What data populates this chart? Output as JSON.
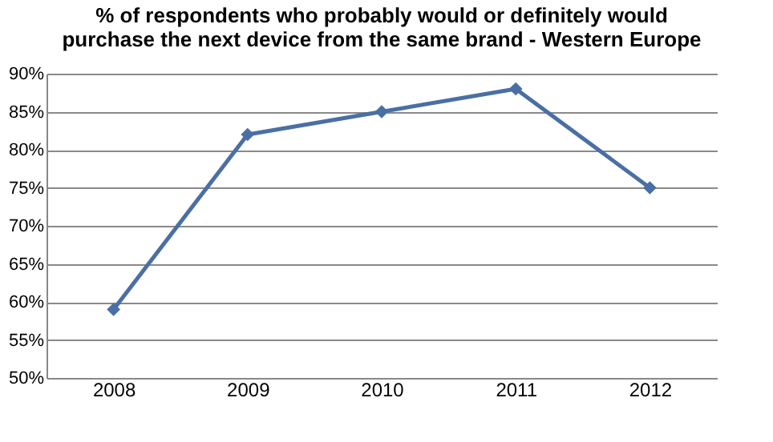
{
  "chart_data": {
    "type": "line",
    "title": "% of respondents who probably would or definitely would purchase the next device from the same brand - Western Europe",
    "categories": [
      "2008",
      "2009",
      "2010",
      "2011",
      "2012"
    ],
    "series": [
      {
        "color": "#4a6fa5",
        "values": [
          59,
          82,
          85,
          88,
          75
        ]
      }
    ],
    "ylim": [
      50,
      90
    ],
    "yticks": [
      {
        "value": 50,
        "label": "50%"
      },
      {
        "value": 55,
        "label": "55%"
      },
      {
        "value": 60,
        "label": "60%"
      },
      {
        "value": 65,
        "label": "65%"
      },
      {
        "value": 70,
        "label": "70%"
      },
      {
        "value": 75,
        "label": "75%"
      },
      {
        "value": 80,
        "label": "80%"
      },
      {
        "value": 85,
        "label": "85%"
      },
      {
        "value": 90,
        "label": "90%"
      }
    ],
    "grid": "y",
    "marker": "diamond",
    "line_style": "solid",
    "legend": false
  }
}
